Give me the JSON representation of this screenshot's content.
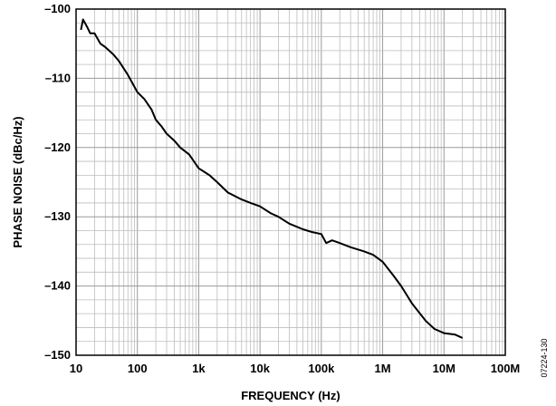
{
  "chart_data": {
    "type": "line",
    "title": "",
    "xlabel": "FREQUENCY (Hz)",
    "ylabel": "PHASE NOISE (dBc/Hz)",
    "x_scale": "log",
    "xlim": [
      10,
      100000000
    ],
    "ylim": [
      -150,
      -100
    ],
    "x_ticks": [
      {
        "value": 10,
        "label": "10"
      },
      {
        "value": 100,
        "label": "100"
      },
      {
        "value": 1000,
        "label": "1k"
      },
      {
        "value": 10000,
        "label": "10k"
      },
      {
        "value": 100000,
        "label": "100k"
      },
      {
        "value": 1000000,
        "label": "1M"
      },
      {
        "value": 10000000,
        "label": "10M"
      },
      {
        "value": 100000000,
        "label": "100M"
      }
    ],
    "y_ticks": [
      {
        "value": -100,
        "label": "–100"
      },
      {
        "value": -110,
        "label": "–110"
      },
      {
        "value": -120,
        "label": "–120"
      },
      {
        "value": -130,
        "label": "–130"
      },
      {
        "value": -140,
        "label": "–140"
      },
      {
        "value": -150,
        "label": "–150"
      }
    ],
    "grid": true,
    "figure_id": "07224-130",
    "series": [
      {
        "x": [
          12,
          13,
          15,
          17,
          20,
          25,
          30,
          40,
          50,
          70,
          100,
          130,
          170,
          200,
          250,
          300,
          400,
          500,
          700,
          1000,
          1500,
          2000,
          3000,
          5000,
          7000,
          10000,
          15000,
          20000,
          30000,
          50000,
          70000,
          100000,
          120000,
          150000,
          200000,
          300000,
          500000,
          700000,
          1000000,
          1500000,
          2000000,
          3000000,
          5000000,
          7000000,
          10000000,
          15000000,
          20000000
        ],
        "y": [
          -103,
          -101.5,
          -102.5,
          -103.5,
          -103.5,
          -105,
          -105.5,
          -106.5,
          -107.5,
          -109.5,
          -112,
          -113,
          -114.5,
          -116,
          -117,
          -118,
          -119,
          -120,
          -121,
          -123,
          -124,
          -125,
          -126.5,
          -127.5,
          -128,
          -128.5,
          -129.5,
          -130,
          -131,
          -131.8,
          -132.2,
          -132.5,
          -133.8,
          -133.4,
          -133.8,
          -134.4,
          -135,
          -135.5,
          -136.5,
          -138.5,
          -140,
          -142.5,
          -145,
          -146.2,
          -146.8,
          -147,
          -147.5
        ]
      }
    ]
  }
}
